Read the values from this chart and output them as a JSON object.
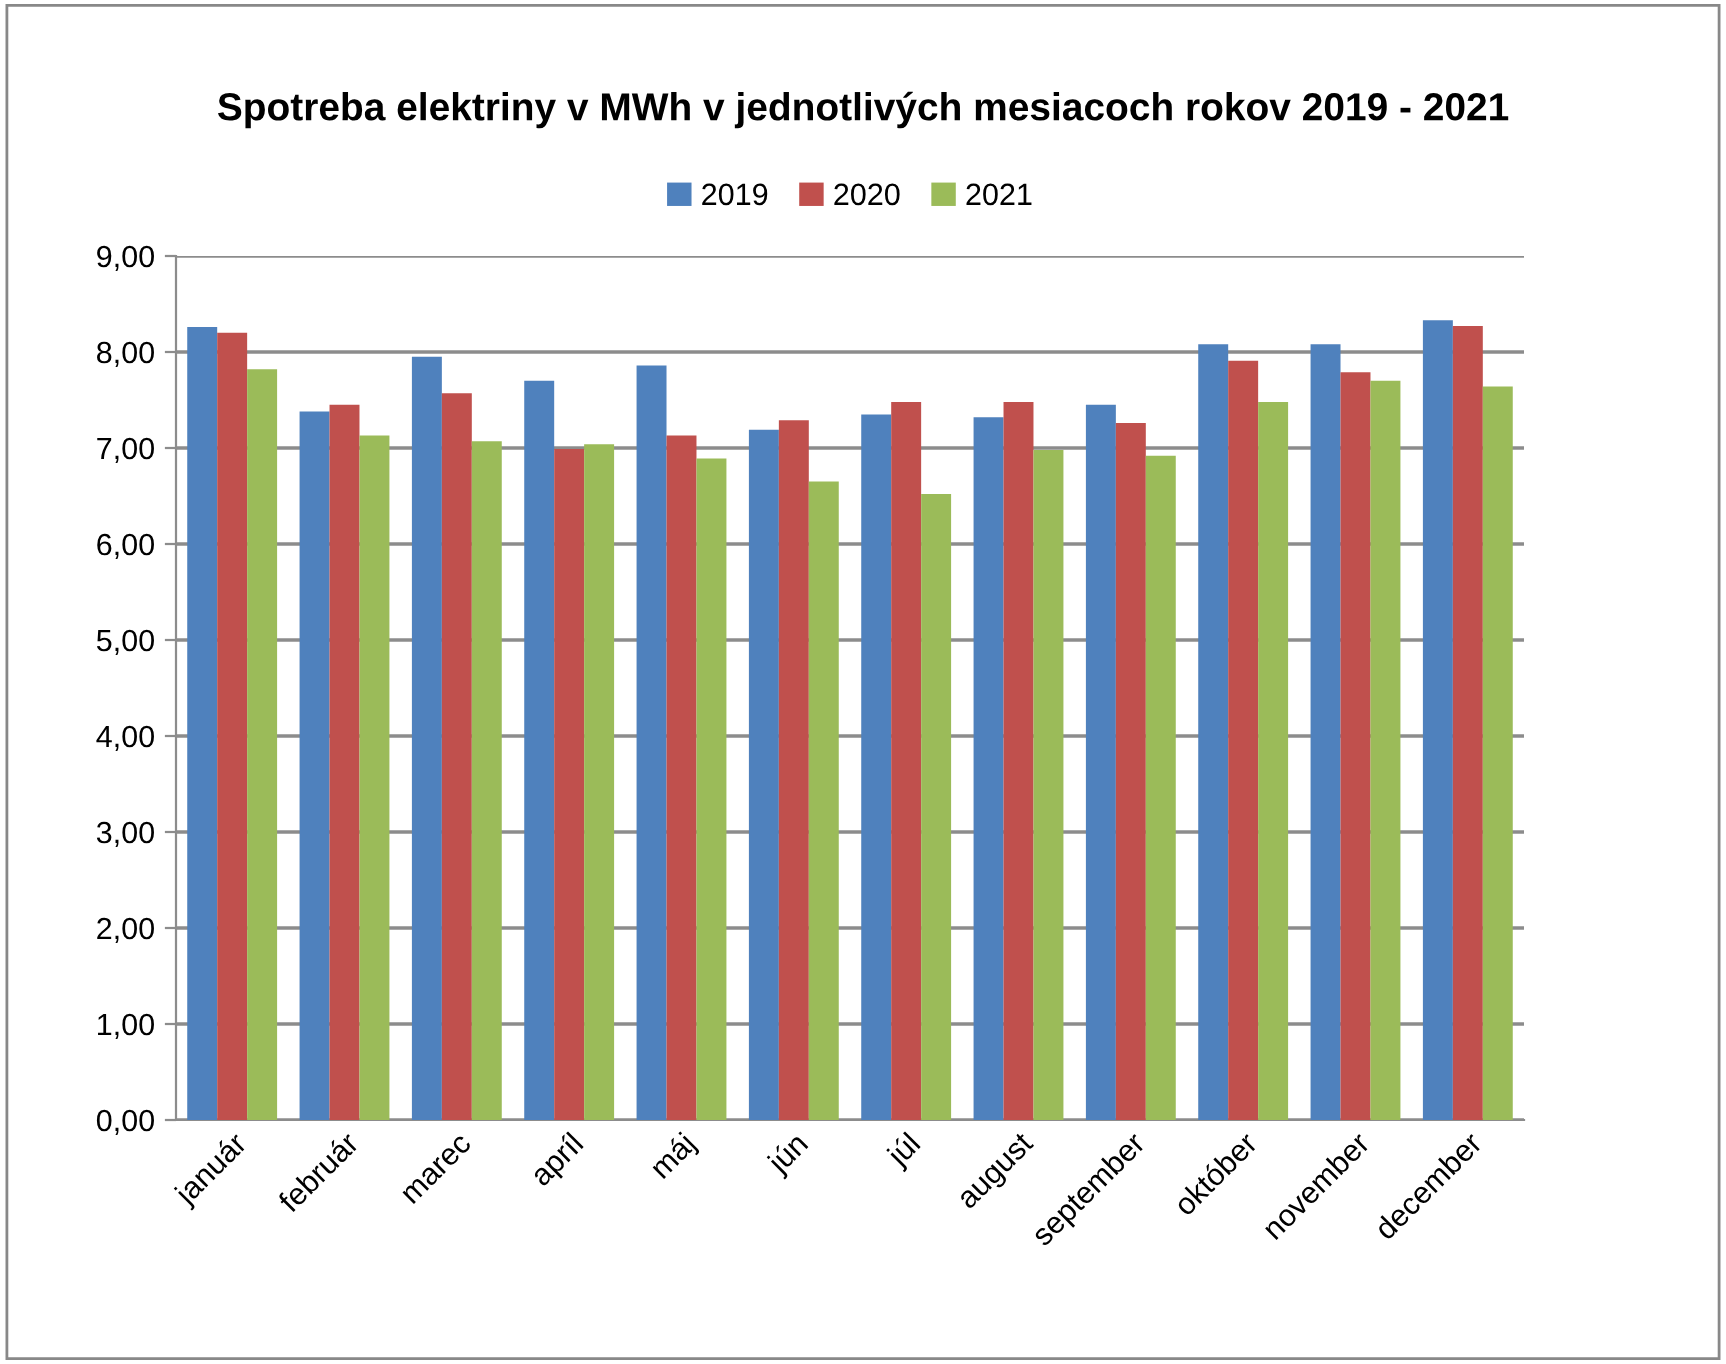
{
  "chart_data": {
    "type": "bar",
    "title": "Spotreba elektriny v MWh v jednotlivých mesiacoch rokov 2019 - 2021",
    "categories": [
      "január",
      "február",
      "marec",
      "apríl",
      "máj",
      "jún",
      "júl",
      "august",
      "september",
      "október",
      "november",
      "december"
    ],
    "series": [
      {
        "name": "2019",
        "color": "#4f81bd",
        "values": [
          8.26,
          7.38,
          7.95,
          7.7,
          7.86,
          7.19,
          7.35,
          7.32,
          7.45,
          8.08,
          8.08,
          8.33
        ]
      },
      {
        "name": "2020",
        "color": "#c0504d",
        "values": [
          8.2,
          7.45,
          7.57,
          6.99,
          7.13,
          7.29,
          7.48,
          7.48,
          7.26,
          7.91,
          7.79,
          8.27
        ]
      },
      {
        "name": "2021",
        "color": "#9bbb59",
        "values": [
          7.82,
          7.13,
          7.07,
          7.04,
          6.89,
          6.65,
          6.52,
          6.98,
          6.92,
          7.48,
          7.7,
          7.64
        ]
      }
    ],
    "ylim": [
      0,
      9
    ],
    "yticks": [
      {
        "value": 0,
        "label": "0,00"
      },
      {
        "value": 1,
        "label": "1,00"
      },
      {
        "value": 2,
        "label": "2,00"
      },
      {
        "value": 3,
        "label": "3,00"
      },
      {
        "value": 4,
        "label": "4,00"
      },
      {
        "value": 5,
        "label": "5,00"
      },
      {
        "value": 6,
        "label": "6,00"
      },
      {
        "value": 7,
        "label": "7,00"
      },
      {
        "value": 8,
        "label": "8,00"
      },
      {
        "value": 9,
        "label": "9,00"
      }
    ],
    "grid": "y",
    "legend": "top"
  }
}
